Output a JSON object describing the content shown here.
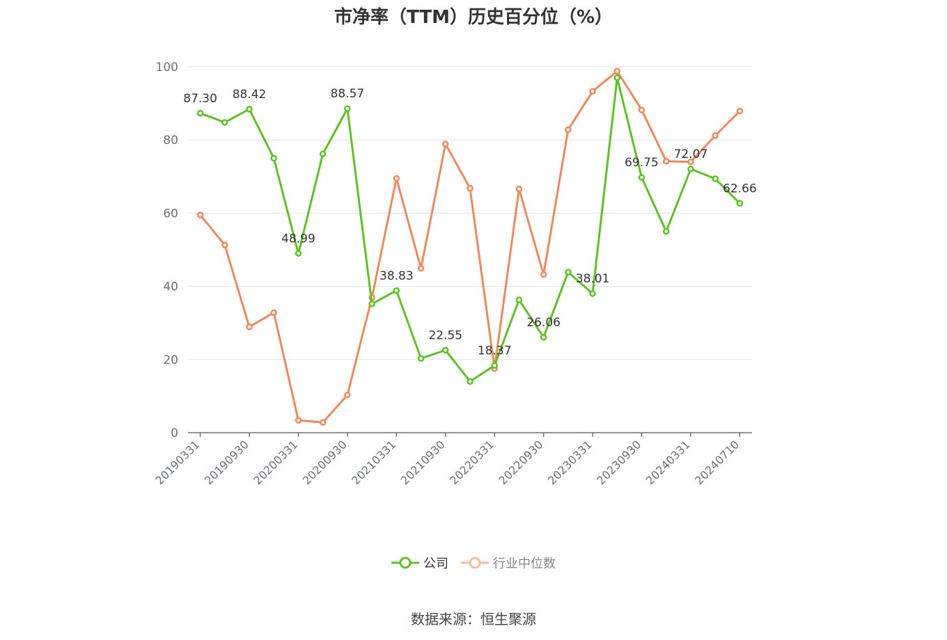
{
  "title": "市净率（TTM）历史百分位（%）",
  "source": "数据来源：恒生聚源",
  "legend": {
    "company": "公司",
    "industry": "行业中位数"
  },
  "colors": {
    "company": "#5bc223",
    "industry": "#f0895a",
    "grid": "#e0e3ec",
    "axis": "#6e7079"
  },
  "chart_data": {
    "type": "line",
    "ylim": [
      0,
      100
    ],
    "y_ticks": [
      0,
      20,
      40,
      60,
      80,
      100
    ],
    "x": [
      "20190331",
      "20190630",
      "20190930",
      "20191231",
      "20200331",
      "20200630",
      "20200930",
      "20201231",
      "20210331",
      "20210630",
      "20210930",
      "20211231",
      "20220331",
      "20220630",
      "20220930",
      "20221231",
      "20230331",
      "20230630",
      "20230930",
      "20231231",
      "20240331",
      "20240630",
      "20240710"
    ],
    "x_tick_labels": [
      "20190331",
      "20190930",
      "20200331",
      "20200930",
      "20210331",
      "20210930",
      "20220331",
      "20220930",
      "20230331",
      "20230930",
      "20240331",
      "20240710"
    ],
    "series": [
      {
        "name": "公司",
        "values": [
          87.3,
          84.8,
          88.42,
          75.0,
          48.99,
          76.2,
          88.57,
          35.2,
          38.83,
          20.3,
          22.55,
          14.0,
          18.37,
          36.3,
          26.06,
          43.9,
          38.01,
          97.0,
          69.75,
          55.0,
          72.07,
          69.4,
          62.66
        ],
        "labels": {
          "0": "87.30",
          "2": "88.42",
          "4": "48.99",
          "6": "88.57",
          "8": "38.83",
          "10": "22.55",
          "12": "18.37",
          "14": "26.06",
          "16": "38.01",
          "18": "69.75",
          "20": "72.07",
          "22": "62.66"
        }
      },
      {
        "name": "行业中位数",
        "values": [
          59.5,
          51.3,
          28.9,
          32.8,
          3.4,
          2.8,
          10.3,
          36.9,
          69.5,
          44.9,
          78.9,
          66.8,
          17.5,
          66.6,
          43.2,
          82.8,
          93.3,
          98.8,
          88.2,
          74.2,
          74.0,
          81.2,
          87.9
        ]
      }
    ]
  }
}
